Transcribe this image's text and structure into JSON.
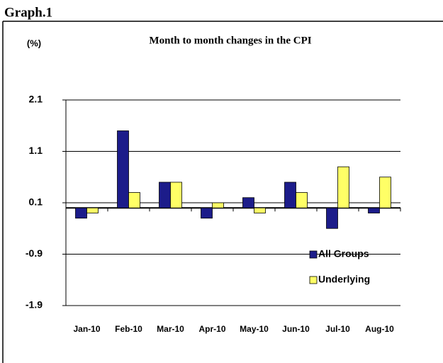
{
  "chart_data": {
    "type": "bar",
    "label": "Graph.1",
    "title": "Month to month changes in the CPI",
    "ylabel": "(%)",
    "categories": [
      "Jan-10",
      "Feb-10",
      "Mar-10",
      "Apr-10",
      "May-10",
      "Jun-10",
      "Jul-10",
      "Aug-10"
    ],
    "series": [
      {
        "name": "All Groups",
        "color": "#1c1c8a",
        "values": [
          -0.2,
          1.5,
          0.5,
          -0.2,
          0.2,
          0.5,
          -0.4,
          -0.1
        ]
      },
      {
        "name": "Underlying",
        "color": "#ffff66",
        "values": [
          -0.1,
          0.3,
          0.5,
          0.1,
          -0.1,
          0.3,
          0.8,
          0.6
        ]
      }
    ],
    "ylim": [
      -1.9,
      2.1
    ],
    "yticks": [
      -1.9,
      -0.9,
      0.1,
      1.1,
      2.1
    ],
    "grid": true,
    "legend": "lower right"
  }
}
